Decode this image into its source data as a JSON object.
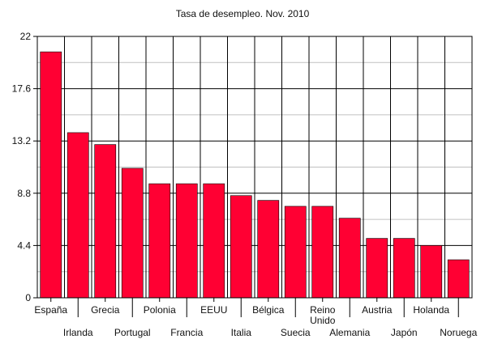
{
  "chart_data": {
    "type": "bar",
    "title": "Tasa de desempleo. Nov. 2010",
    "xlabel": "",
    "ylabel": "",
    "categories": [
      "España",
      "Irlanda",
      "Grecia",
      "Portugal",
      "Polonia",
      "Francia",
      "EEUU",
      "Italia",
      "Bélgica",
      "Suecia",
      "Reino Unido",
      "Alemania",
      "Austria",
      "Japón",
      "Holanda",
      "Noruega"
    ],
    "category_lines": [
      [
        "España"
      ],
      [
        "Irlanda"
      ],
      [
        "Grecia"
      ],
      [
        "Portugal"
      ],
      [
        "Polonia"
      ],
      [
        "Francia"
      ],
      [
        "EEUU"
      ],
      [
        "Italia"
      ],
      [
        "Bélgica"
      ],
      [
        "Suecia"
      ],
      [
        "Reino",
        "Unido"
      ],
      [
        "Alemania"
      ],
      [
        "Austria"
      ],
      [
        "Japón"
      ],
      [
        "Holanda"
      ],
      [
        "Noruega"
      ]
    ],
    "values": [
      20.7,
      13.9,
      12.9,
      10.9,
      9.6,
      9.6,
      9.6,
      8.6,
      8.2,
      7.7,
      7.7,
      6.7,
      5.0,
      5.0,
      4.4,
      3.2
    ],
    "ylim": [
      0,
      22
    ],
    "yticks": [
      "0",
      "4.4",
      "8.8",
      "13.2",
      "17.6",
      "22"
    ],
    "grid": true,
    "legend": "none",
    "colors": {
      "bar": "#ff0033",
      "bar_edge": "#000000",
      "grid_major": "#000000",
      "grid_minor": "#c0c0c0"
    }
  }
}
